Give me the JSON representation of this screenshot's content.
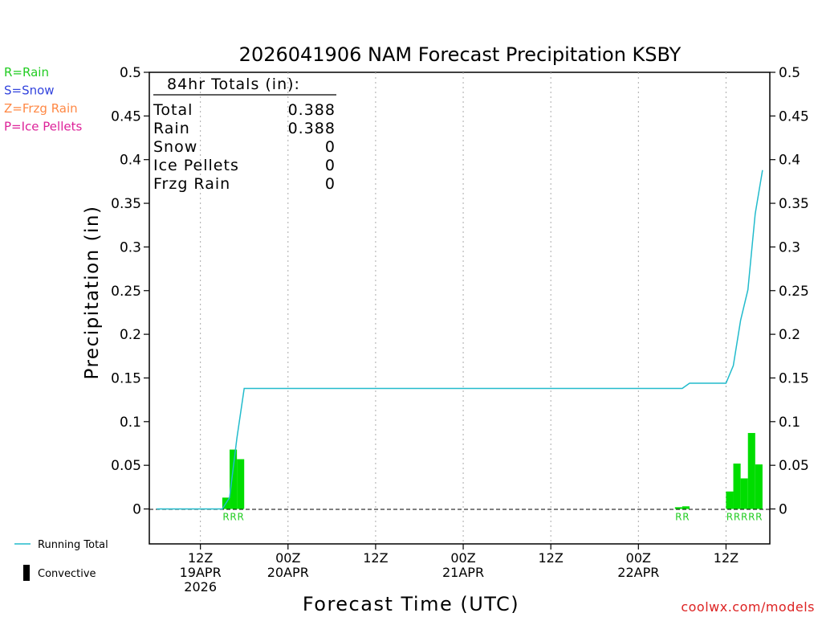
{
  "title": "2026041906 NAM Forecast Precipitation KSBY",
  "ylabel": "Precipitation (in)",
  "xlabel": "Forecast Time (UTC)",
  "credit": "coolwx.com/models",
  "ptype_legend": [
    {
      "text": "R=Rain",
      "color": "#22cc22"
    },
    {
      "text": "S=Snow",
      "color": "#3344dd"
    },
    {
      "text": "Z=Frzg Rain",
      "color": "#ff8844"
    },
    {
      "text": "P=Ice Pellets",
      "color": "#dd2299"
    }
  ],
  "series_legend": [
    {
      "text": "Running Total",
      "color": "#22bbcc"
    },
    {
      "text": "Convective",
      "color": "#000000"
    }
  ],
  "totals": {
    "heading": "84hr Totals (in):",
    "rows": [
      {
        "label": "Total",
        "value": "0.388"
      },
      {
        "label": "Rain",
        "value": "0.388"
      },
      {
        "label": "Snow",
        "value": "0"
      },
      {
        "label": "Ice Pellets",
        "value": "0"
      },
      {
        "label": "Frzg Rain",
        "value": "0"
      }
    ]
  },
  "chart_data": {
    "type": "bar",
    "title": "2026041906 NAM Forecast Precipitation KSBY",
    "xlabel": "Forecast Time (UTC)",
    "ylabel": "Precipitation (in)",
    "ylim": [
      -0.04,
      0.5
    ],
    "xlim": [
      -1,
      84
    ],
    "yticks": [
      0,
      0.05,
      0.1,
      0.15,
      0.2,
      0.25,
      0.3,
      0.35,
      0.4,
      0.45,
      0.5
    ],
    "ytick_labels": [
      "0",
      "0.05",
      "0.1",
      "0.15",
      "0.2",
      "0.25",
      "0.3",
      "0.35",
      "0.4",
      "0.45",
      "0.5"
    ],
    "xticks": [
      {
        "x": 6,
        "lines": [
          "12Z",
          "19APR",
          "2026"
        ]
      },
      {
        "x": 18,
        "lines": [
          "00Z",
          "20APR"
        ]
      },
      {
        "x": 30,
        "lines": [
          "12Z"
        ]
      },
      {
        "x": 42,
        "lines": [
          "00Z",
          "21APR"
        ]
      },
      {
        "x": 54,
        "lines": [
          "12Z"
        ]
      },
      {
        "x": 66,
        "lines": [
          "00Z",
          "22APR"
        ]
      },
      {
        "x": 78,
        "lines": [
          "12Z"
        ]
      }
    ],
    "bar_width": 1,
    "bars": [
      {
        "x": 10,
        "value": 0.013,
        "label": "R"
      },
      {
        "x": 11,
        "value": 0.068,
        "label": "R"
      },
      {
        "x": 12,
        "value": 0.057,
        "label": "R"
      },
      {
        "x": 72,
        "value": 0.002,
        "label": "R"
      },
      {
        "x": 73,
        "value": 0.003,
        "label": "R"
      },
      {
        "x": 79,
        "value": 0.02,
        "label": "R"
      },
      {
        "x": 80,
        "value": 0.052,
        "label": "R"
      },
      {
        "x": 81,
        "value": 0.035,
        "label": "R"
      },
      {
        "x": 82,
        "value": 0.087,
        "label": "R"
      },
      {
        "x": 83,
        "value": 0.051,
        "label": "R"
      }
    ],
    "running_total": {
      "name": "Running Total",
      "x": [
        0,
        9,
        10,
        11,
        12,
        72,
        73,
        78,
        79,
        80,
        81,
        82,
        83
      ],
      "y": [
        0,
        0,
        0.013,
        0.081,
        0.138,
        0.138,
        0.144,
        0.144,
        0.164,
        0.216,
        0.251,
        0.338,
        0.388
      ]
    },
    "convective": {
      "name": "Convective",
      "values": []
    },
    "grid": "vertical dotted"
  }
}
